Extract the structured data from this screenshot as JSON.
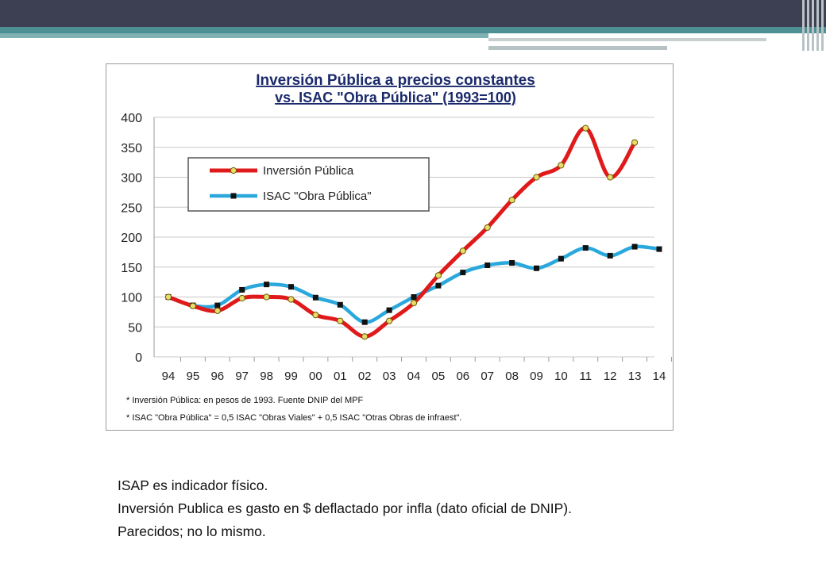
{
  "slide": {
    "notes": [
      "ISAP es indicador físico.",
      "Inversión Publica es gasto en $ deflactado por infla (dato oficial de DNIP).",
      "Parecidos; no lo mismo."
    ]
  },
  "chart_data": {
    "type": "line",
    "title": "Inversión Pública a precios constantes",
    "subtitle": "vs. ISAC \"Obra Pública\" (1993=100)",
    "categories": [
      "94",
      "95",
      "96",
      "97",
      "98",
      "99",
      "00",
      "01",
      "02",
      "03",
      "04",
      "05",
      "06",
      "07",
      "08",
      "09",
      "10",
      "11",
      "12",
      "13",
      "14"
    ],
    "ylim": [
      0,
      400
    ],
    "yticks": [
      0,
      50,
      100,
      150,
      200,
      250,
      300,
      350,
      400
    ],
    "grid": true,
    "legend_position": "upper-left",
    "series": [
      {
        "name": "Inversión Pública",
        "color": "#e01a1a",
        "marker": "circle",
        "marker_color": "#e8dc6a",
        "values": [
          100,
          85,
          77,
          98,
          100,
          96,
          70,
          60,
          34,
          60,
          90,
          136,
          177,
          216,
          262,
          300,
          320,
          382,
          300,
          358,
          null
        ]
      },
      {
        "name": "ISAC \"Obra Pública\"",
        "color": "#2aa8dc",
        "marker": "square",
        "marker_color": "#111111",
        "values": [
          100,
          86,
          86,
          112,
          121,
          117,
          99,
          87,
          58,
          78,
          100,
          119,
          141,
          153,
          157,
          148,
          164,
          182,
          169,
          184,
          180
        ]
      }
    ],
    "footnotes": [
      "* Inversión Pública: en pesos de 1993. Fuente DNIP del MPF",
      "* ISAC \"Obra Pública\" = 0,5 ISAC \"Obras Viales\" + 0,5 ISAC \"Otras Obras de infraest\"."
    ]
  }
}
